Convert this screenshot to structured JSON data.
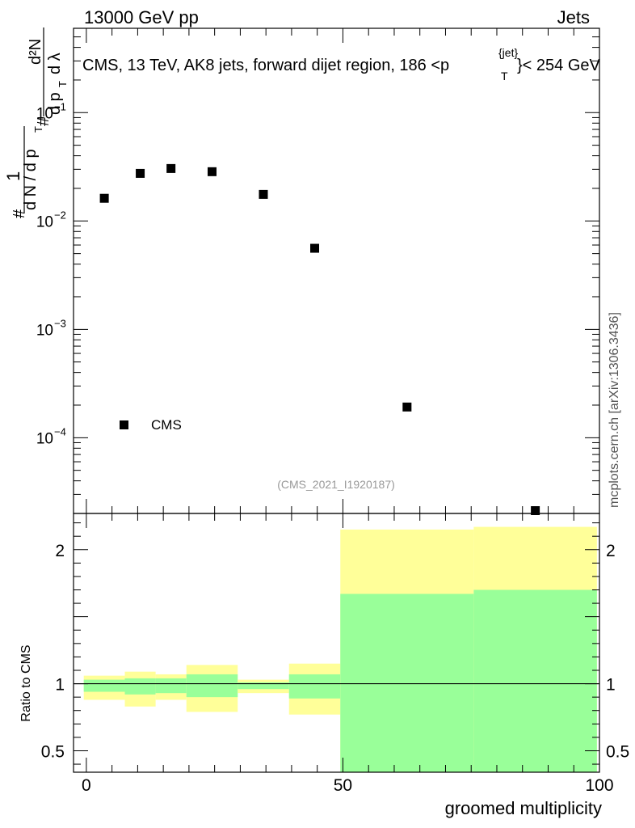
{
  "header": {
    "left": "13000 GeV pp",
    "right": "Jets"
  },
  "title": "CMS, 13 TeV, AK8 jets, forward dijet region, 186 <p",
  "title_sup": "{jet}",
  "title_sub": "T",
  "title_tail": "}< 254 GeV",
  "watermark": "mcplots.cern.ch [arXiv:1306.3436]",
  "analysis_id": "(CMS_2021_I1920187)",
  "legend": {
    "entry": "CMS"
  },
  "ylabel_main": {
    "hash1": "#",
    "one": "1",
    "dn": "d N / d p",
    "sub": "T",
    "hash2": "#",
    "num": "d²N",
    "den": "d p",
    "den_sub": "T",
    "den_tail": "d λ"
  },
  "ratio": {
    "ylabel": "Ratio to CMS"
  },
  "xlabel": "groomed multiplicity",
  "chart_data": [
    {
      "type": "scatter",
      "panel": "main",
      "yscale": "log",
      "ylim": [
        2e-05,
        0.6
      ],
      "xlim": [
        -2.5,
        100
      ],
      "yticks": [
        {
          "value": 0.0001,
          "label": "10",
          "exp": "−4"
        },
        {
          "value": 0.001,
          "label": "10",
          "exp": "−3"
        },
        {
          "value": 0.01,
          "label": "10",
          "exp": "−2"
        },
        {
          "value": 0.1,
          "label": "10",
          "exp": "−1"
        }
      ],
      "series": [
        {
          "name": "CMS",
          "x": [
            3.5,
            10.5,
            16.5,
            24.5,
            34.5,
            44.5,
            62.5,
            87.5
          ],
          "y": [
            0.0162,
            0.0275,
            0.0305,
            0.0285,
            0.0176,
            0.0056,
            0.000192,
            2e-05
          ]
        }
      ]
    },
    {
      "type": "area",
      "panel": "ratio",
      "ylim": [
        0.34,
        2.27
      ],
      "xlim": [
        -2.5,
        100
      ],
      "yticks": [
        0.5,
        1,
        2
      ],
      "ytick_labels": [
        "0.5",
        "1",
        "2"
      ],
      "xticks": [
        0,
        50,
        100
      ],
      "xtick_labels": [
        "0",
        "50",
        "100"
      ],
      "reference_line": 1,
      "bins": [
        {
          "lo": -0.5,
          "hi": 7.5,
          "yellow": [
            0.88,
            1.06
          ],
          "green": [
            0.94,
            1.03
          ]
        },
        {
          "lo": 7.5,
          "hi": 13.5,
          "yellow": [
            0.83,
            1.09
          ],
          "green": [
            0.92,
            1.04
          ]
        },
        {
          "lo": 13.5,
          "hi": 19.5,
          "yellow": [
            0.88,
            1.07
          ],
          "green": [
            0.93,
            1.04
          ]
        },
        {
          "lo": 19.5,
          "hi": 29.5,
          "yellow": [
            0.79,
            1.14
          ],
          "green": [
            0.9,
            1.07
          ]
        },
        {
          "lo": 29.5,
          "hi": 39.5,
          "yellow": [
            0.93,
            1.03
          ],
          "green": [
            0.96,
            1.01
          ]
        },
        {
          "lo": 39.5,
          "hi": 49.5,
          "yellow": [
            0.77,
            1.15
          ],
          "green": [
            0.89,
            1.07
          ]
        },
        {
          "lo": 49.5,
          "hi": 75.5,
          "yellow": [
            0.37,
            2.15
          ],
          "green": [
            0.34,
            1.67
          ]
        },
        {
          "lo": 75.5,
          "hi": 99.5,
          "yellow": [
            0.34,
            2.17
          ],
          "green": [
            0.34,
            1.7
          ]
        }
      ]
    }
  ],
  "colors": {
    "yellow": "#ffff99",
    "green": "#99ff99",
    "marker": "#000000",
    "id_text": "#999999"
  }
}
